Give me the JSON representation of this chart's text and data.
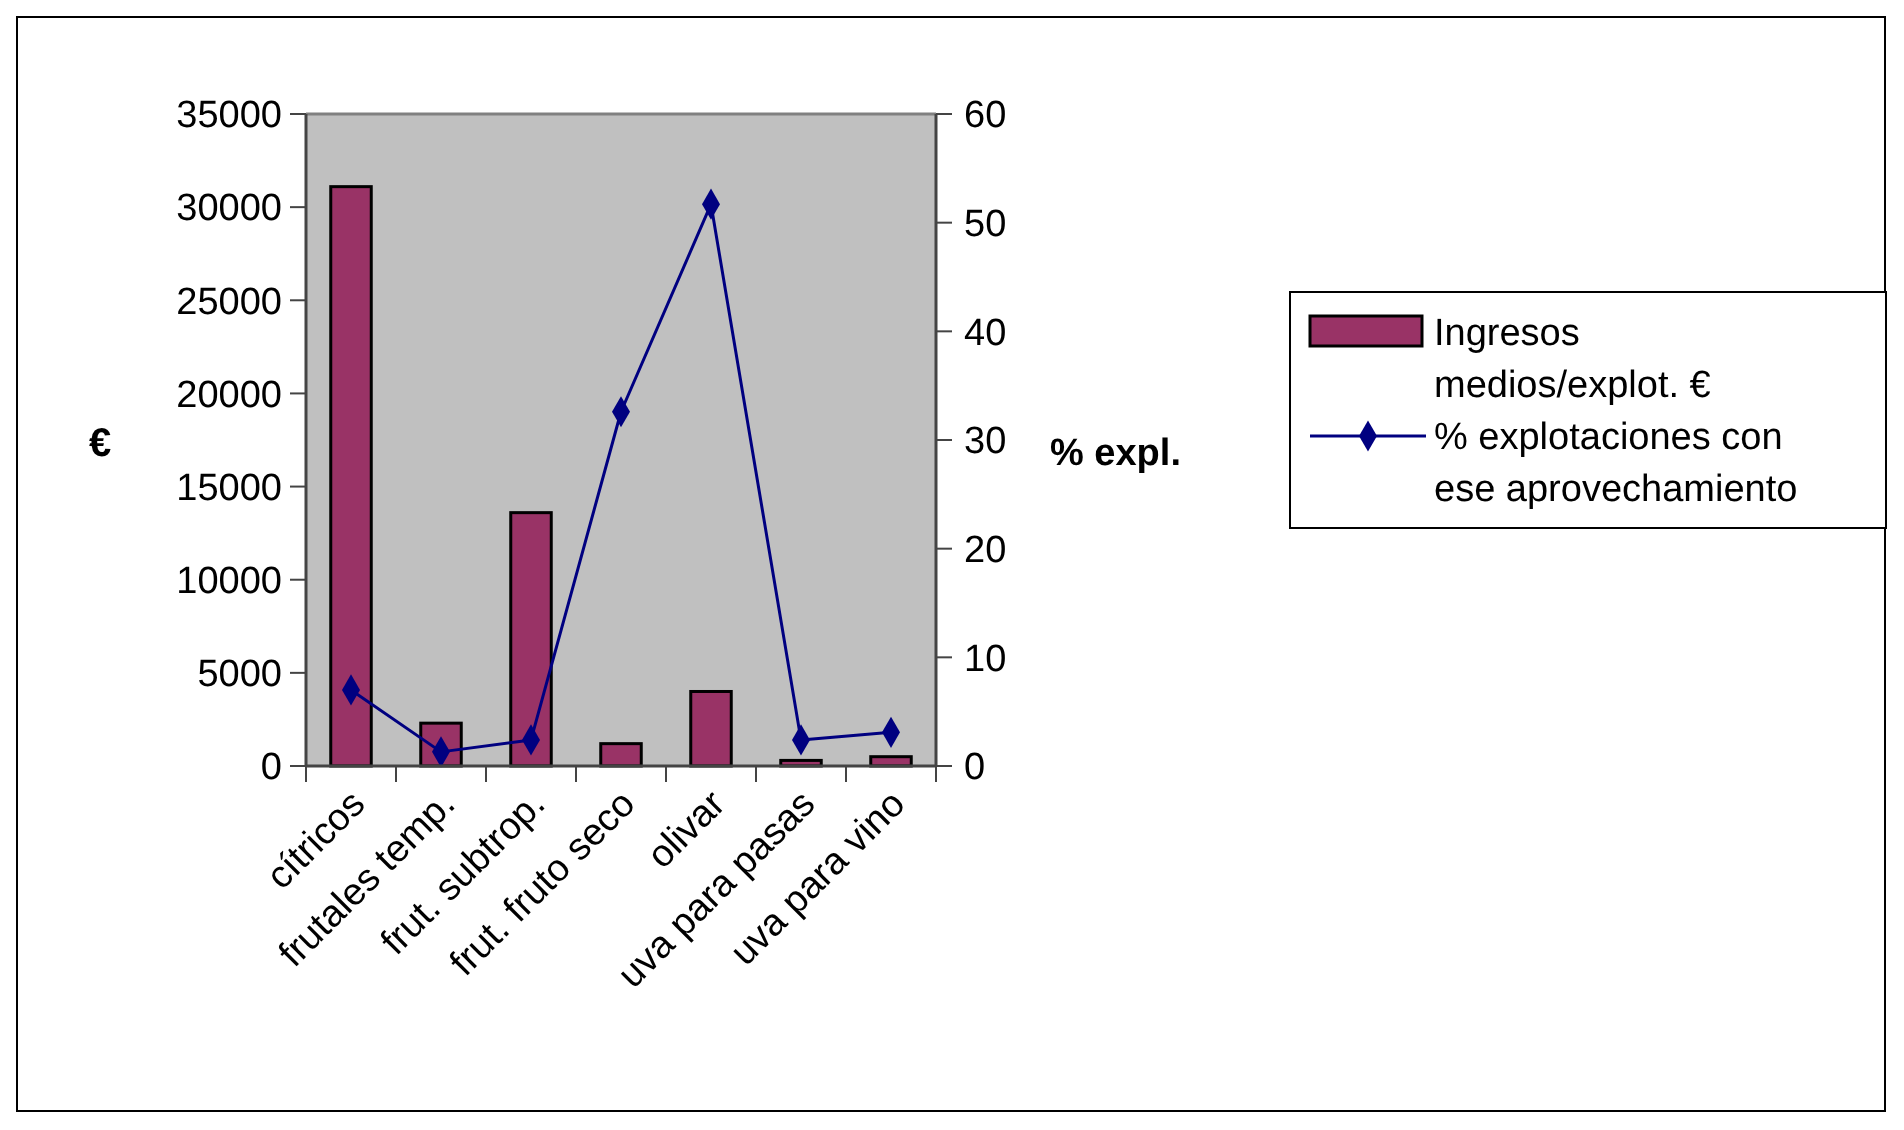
{
  "chart_data": {
    "type": "bar",
    "categories": [
      "cítricos",
      "frutales temp.",
      "frut. subtrop.",
      "frut. fruto seco",
      "olivar",
      "uva para pasas",
      "uva para vino"
    ],
    "series": [
      {
        "name": "Ingresos medios/explot. €",
        "color": "#993366",
        "values": [
          31100,
          2300,
          13600,
          1200,
          4000,
          300,
          500
        ]
      },
      {
        "name": "% explotaciones con ese aprovechamiento",
        "type": "line",
        "axis": "y2",
        "color": "#000080",
        "marker": "diamond",
        "values": [
          7,
          1.3,
          2.4,
          32.6,
          51.7,
          2.4,
          3.1
        ]
      }
    ],
    "ylabel": "€",
    "y2label": "% expl.",
    "ylim": [
      0,
      35000
    ],
    "yticks": [
      0,
      5000,
      10000,
      15000,
      20000,
      25000,
      30000,
      35000
    ],
    "y2lim": [
      0,
      60
    ],
    "y2ticks": [
      0,
      10,
      20,
      30,
      40,
      50,
      60
    ],
    "grid": false,
    "legend": "right"
  }
}
